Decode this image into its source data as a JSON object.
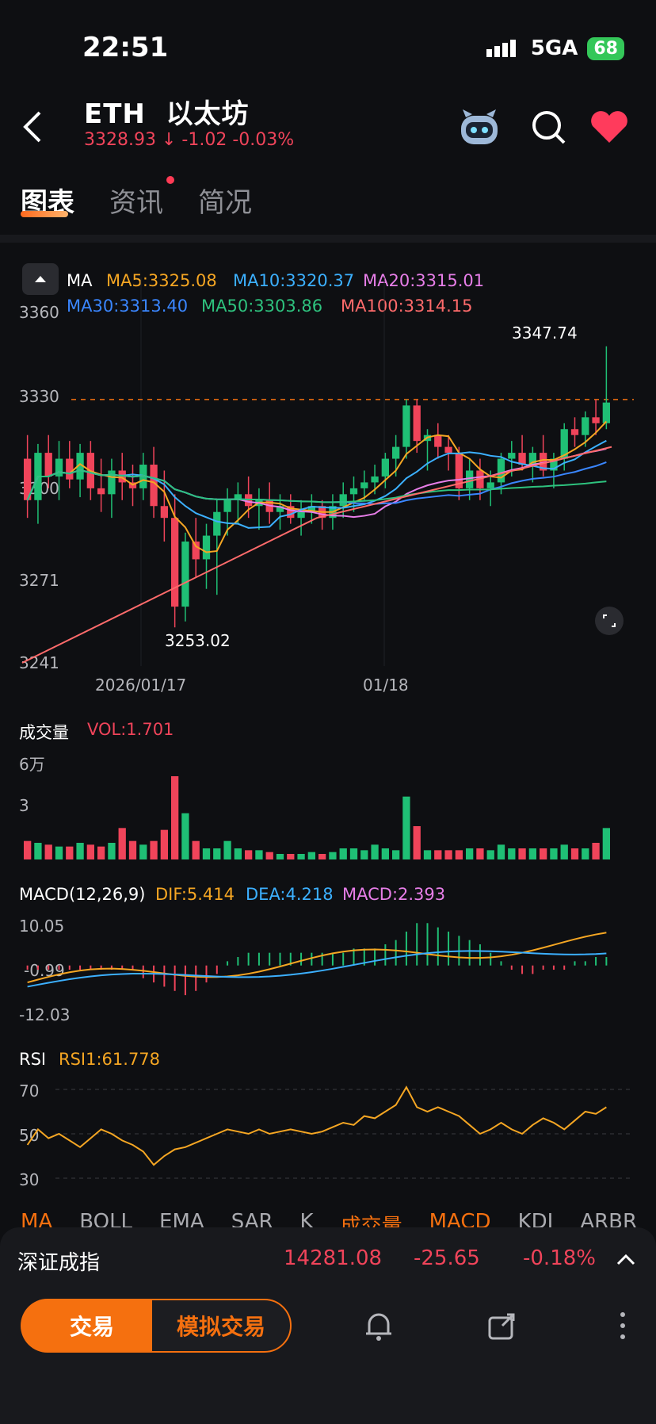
{
  "status": {
    "time": "22:51",
    "network": "5GA",
    "battery": "68"
  },
  "header": {
    "symbol": "ETH",
    "name": "以太坊",
    "price": "3328.93",
    "change": "-1.02",
    "change_pct": "-0.03%"
  },
  "tabs": [
    {
      "label": "图表"
    },
    {
      "label": "资讯"
    },
    {
      "label": "简况"
    }
  ],
  "ma_legend": {
    "ma": "MA",
    "ma5": "MA5:3325.08",
    "ma10": "MA10:3320.37",
    "ma20": "MA20:3315.01",
    "ma30": "MA30:3313.40",
    "ma50": "MA50:3303.86",
    "ma100": "MA100:3314.15"
  },
  "price_axis": [
    "3360",
    "3330",
    "3300",
    "3271",
    "3241"
  ],
  "date_axis": [
    "2026/01/17",
    "01/18"
  ],
  "annotations": {
    "high": "3347.74",
    "low": "3253.02"
  },
  "volume": {
    "title": "成交量",
    "value": "VOL:1.701",
    "axis_top": "6万",
    "axis_mid": "3"
  },
  "macd": {
    "title": "MACD(12,26,9)",
    "dif": "DIF:5.414",
    "dea": "DEA:4.218",
    "macd": "MACD:2.393",
    "axis": [
      "10.05",
      "-0.99",
      "-12.03"
    ]
  },
  "rsi": {
    "title": "RSI",
    "rsi1": "RSI1:61.778",
    "axis": [
      "70",
      "50",
      "30"
    ]
  },
  "indicator_tabs": [
    "MA",
    "BOLL",
    "EMA",
    "SAR",
    "K",
    "成交量",
    "MACD",
    "KDJ",
    "ARBR"
  ],
  "ticker": {
    "name": "深证成指",
    "value": "14281.08",
    "change": "-25.65",
    "pct": "-0.18%"
  },
  "buttons": {
    "trade": "交易",
    "sim": "模拟交易"
  },
  "colors": {
    "up": "#1fbf75",
    "down": "#f0445a",
    "accent": "#f5700f"
  },
  "chart_data": [
    {
      "type": "candlestick",
      "title": "",
      "ylim": [
        3241,
        3360
      ],
      "x": [
        "2026/01/17",
        "01/18"
      ],
      "ohlc": [
        [
          3310,
          3318,
          3290,
          3296
        ],
        [
          3296,
          3315,
          3288,
          3312
        ],
        [
          3312,
          3318,
          3300,
          3304
        ],
        [
          3304,
          3316,
          3296,
          3310
        ],
        [
          3310,
          3316,
          3300,
          3303
        ],
        [
          3303,
          3315,
          3297,
          3312
        ],
        [
          3312,
          3316,
          3296,
          3300
        ],
        [
          3300,
          3310,
          3292,
          3298
        ],
        [
          3298,
          3310,
          3290,
          3306
        ],
        [
          3306,
          3312,
          3296,
          3302
        ],
        [
          3302,
          3308,
          3294,
          3300
        ],
        [
          3300,
          3312,
          3296,
          3308
        ],
        [
          3308,
          3314,
          3290,
          3294
        ],
        [
          3294,
          3306,
          3282,
          3290
        ],
        [
          3290,
          3298,
          3253,
          3260
        ],
        [
          3260,
          3285,
          3255,
          3282
        ],
        [
          3282,
          3290,
          3270,
          3276
        ],
        [
          3276,
          3288,
          3266,
          3284
        ],
        [
          3284,
          3296,
          3264,
          3292
        ],
        [
          3292,
          3300,
          3284,
          3296
        ],
        [
          3296,
          3302,
          3288,
          3298
        ],
        [
          3298,
          3304,
          3290,
          3294
        ],
        [
          3294,
          3300,
          3286,
          3296
        ],
        [
          3296,
          3302,
          3288,
          3292
        ],
        [
          3292,
          3298,
          3286,
          3294
        ],
        [
          3294,
          3298,
          3288,
          3290
        ],
        [
          3290,
          3296,
          3284,
          3292
        ],
        [
          3292,
          3298,
          3288,
          3294
        ],
        [
          3294,
          3296,
          3286,
          3290
        ],
        [
          3290,
          3298,
          3286,
          3294
        ],
        [
          3294,
          3302,
          3290,
          3298
        ],
        [
          3298,
          3304,
          3292,
          3300
        ],
        [
          3300,
          3306,
          3296,
          3302
        ],
        [
          3302,
          3308,
          3298,
          3304
        ],
        [
          3304,
          3312,
          3300,
          3310
        ],
        [
          3310,
          3318,
          3304,
          3314
        ],
        [
          3314,
          3330,
          3310,
          3328
        ],
        [
          3328,
          3330,
          3312,
          3316
        ],
        [
          3316,
          3320,
          3306,
          3318
        ],
        [
          3318,
          3322,
          3310,
          3314
        ],
        [
          3314,
          3318,
          3306,
          3312
        ],
        [
          3312,
          3314,
          3296,
          3300
        ],
        [
          3300,
          3310,
          3296,
          3306
        ],
        [
          3306,
          3310,
          3296,
          3300
        ],
        [
          3300,
          3306,
          3294,
          3302
        ],
        [
          3302,
          3312,
          3298,
          3310
        ],
        [
          3310,
          3316,
          3304,
          3312
        ],
        [
          3312,
          3318,
          3306,
          3308
        ],
        [
          3308,
          3314,
          3302,
          3312
        ],
        [
          3312,
          3318,
          3304,
          3306
        ],
        [
          3306,
          3312,
          3300,
          3310
        ],
        [
          3310,
          3322,
          3306,
          3320
        ],
        [
          3320,
          3324,
          3314,
          3318
        ],
        [
          3318,
          3326,
          3314,
          3324
        ],
        [
          3324,
          3330,
          3318,
          3322
        ],
        [
          3322,
          3348,
          3320,
          3329
        ]
      ]
    },
    {
      "type": "bar",
      "title": "成交量",
      "values": [
        1.0,
        0.9,
        0.8,
        0.7,
        0.7,
        0.9,
        0.8,
        0.7,
        0.9,
        1.7,
        1.0,
        0.8,
        1.0,
        1.6,
        4.5,
        2.5,
        1.0,
        0.6,
        0.6,
        1.0,
        0.6,
        0.5,
        0.5,
        0.4,
        0.3,
        0.3,
        0.3,
        0.4,
        0.3,
        0.4,
        0.6,
        0.6,
        0.5,
        0.8,
        0.6,
        0.5,
        3.4,
        1.8,
        0.5,
        0.5,
        0.5,
        0.5,
        0.6,
        0.6,
        0.5,
        0.8,
        0.6,
        0.6,
        0.6,
        0.6,
        0.6,
        0.8,
        0.6,
        0.6,
        0.9,
        1.7
      ],
      "ylim": [
        0,
        6
      ]
    },
    {
      "type": "bar",
      "title": "MACD(12,26,9)",
      "values": [
        -1,
        -1,
        -1,
        -1,
        -1,
        -1,
        -1,
        -1,
        -1,
        -1,
        -1,
        -3,
        -4,
        -5,
        -6,
        -7,
        -6,
        -4,
        -2,
        1,
        2,
        3,
        3,
        3,
        3,
        3,
        3,
        3,
        3,
        3,
        3,
        4,
        4,
        4,
        5,
        6,
        8,
        10,
        10,
        9,
        8,
        7,
        6,
        5,
        3,
        1,
        -1,
        -2,
        -2,
        -1,
        -1,
        -1,
        1,
        1,
        2,
        2
      ],
      "ylim": [
        -12.03,
        10.05
      ]
    },
    {
      "type": "line",
      "title": "RSI",
      "series": [
        {
          "name": "RSI1",
          "values": [
            45,
            52,
            48,
            50,
            47,
            44,
            48,
            52,
            50,
            47,
            45,
            42,
            36,
            40,
            43,
            44,
            46,
            48,
            50,
            52,
            51,
            50,
            52,
            50,
            51,
            52,
            51,
            50,
            51,
            53,
            55,
            54,
            58,
            57,
            60,
            63,
            71,
            62,
            60,
            62,
            60,
            58,
            54,
            50,
            52,
            55,
            52,
            50,
            54,
            57,
            55,
            52,
            56,
            60,
            59,
            62
          ]
        }
      ],
      "ylim": [
        30,
        70
      ]
    }
  ]
}
